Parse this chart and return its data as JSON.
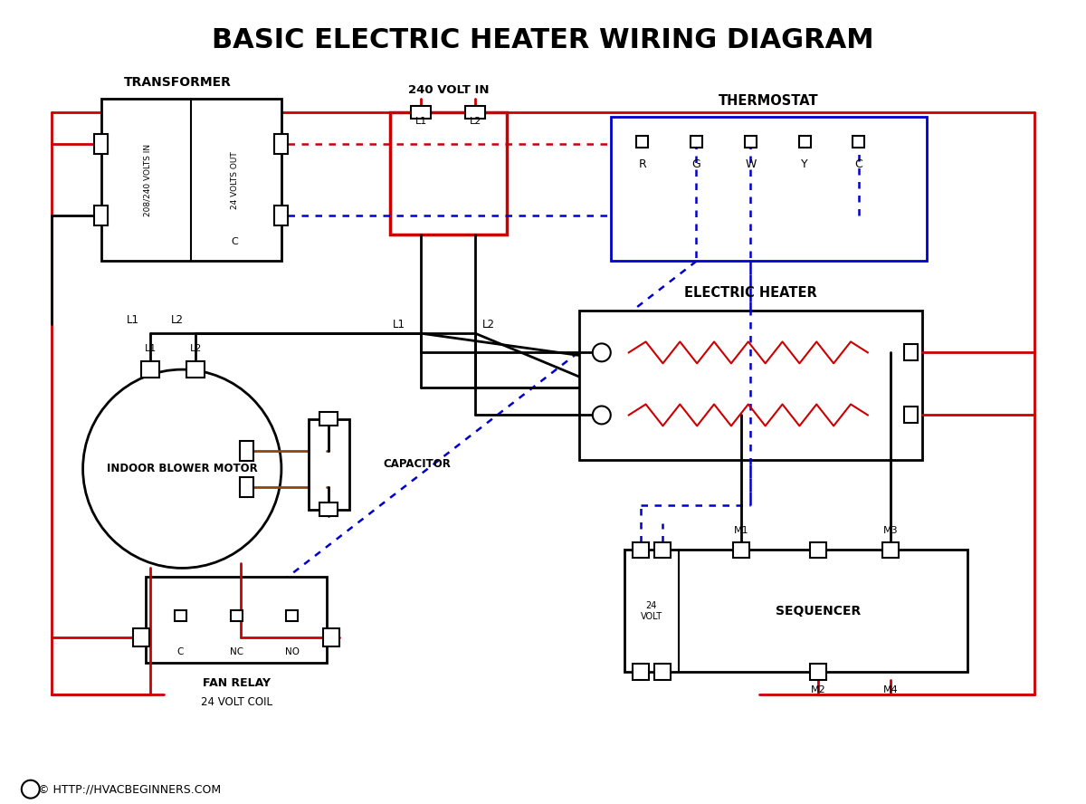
{
  "title": "BASIC ELECTRIC HEATER WIRING DIAGRAM",
  "title_fontsize": 22,
  "bg_color": "#ffffff",
  "line_color_red": "#cc0000",
  "line_color_blue": "#0000cc",
  "line_color_black": "#000000",
  "line_color_brown": "#8B4513",
  "footer_text": "© HTTP://HVACBEGINNERS.COM",
  "components": {
    "transformer": {
      "label": "TRANSFORMER",
      "sublabel1": "208/240 VOLTS IN",
      "sublabel2": "24 VOLTS OUT",
      "sublabel3": "C"
    },
    "supply": {
      "label": "240 VOLT IN"
    },
    "thermostat": {
      "label": "THERMOSTAT",
      "terminals": [
        "R",
        "G",
        "W",
        "Y",
        "C"
      ]
    },
    "motor": {
      "label": "INDOOR BLOWER MOTOR"
    },
    "capacitor": {
      "label": "CAPACITOR"
    },
    "heater": {
      "label": "ELECTRIC HEATER"
    },
    "fan_relay": {
      "label": "FAN RELAY",
      "sublabel": "24 VOLT COIL",
      "terminals": [
        "C",
        "NC",
        "NO"
      ]
    },
    "sequencer": {
      "label": "SEQUENCER",
      "terminals": [
        "24 VOLT",
        "M1",
        "M2",
        "M3",
        "M4"
      ]
    }
  }
}
